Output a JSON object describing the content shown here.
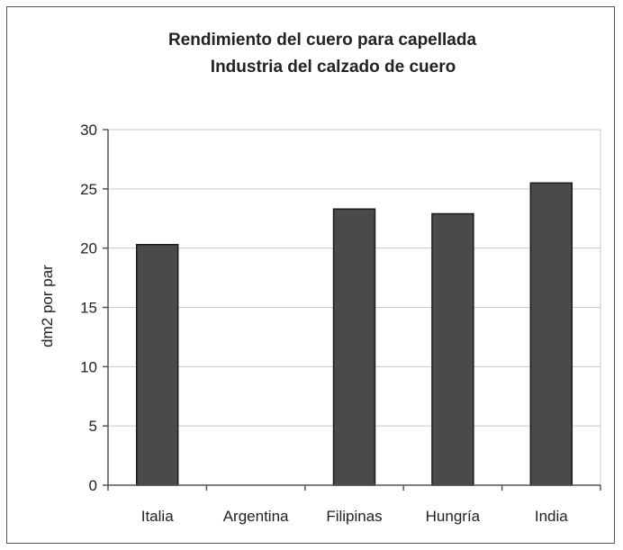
{
  "chart_data": {
    "type": "bar",
    "title": [
      "Rendimiento del cuero para capellada",
      "Industria del calzado de cuero"
    ],
    "xlabel": "",
    "ylabel": "dm2 por par",
    "categories": [
      "Italia",
      "Argentina",
      "Filipinas",
      "Hungría",
      "India"
    ],
    "values": [
      20.3,
      null,
      23.3,
      22.9,
      25.5
    ],
    "ylim": [
      0,
      30
    ],
    "yticks": [
      0,
      5,
      10,
      15,
      20,
      25,
      30
    ],
    "grid": true,
    "legend": "none",
    "colors": {
      "bar": "#4a4a4a",
      "bar_edge": "#1a1a1a",
      "grid": "#c8c8c8",
      "axis": "#555555"
    }
  }
}
